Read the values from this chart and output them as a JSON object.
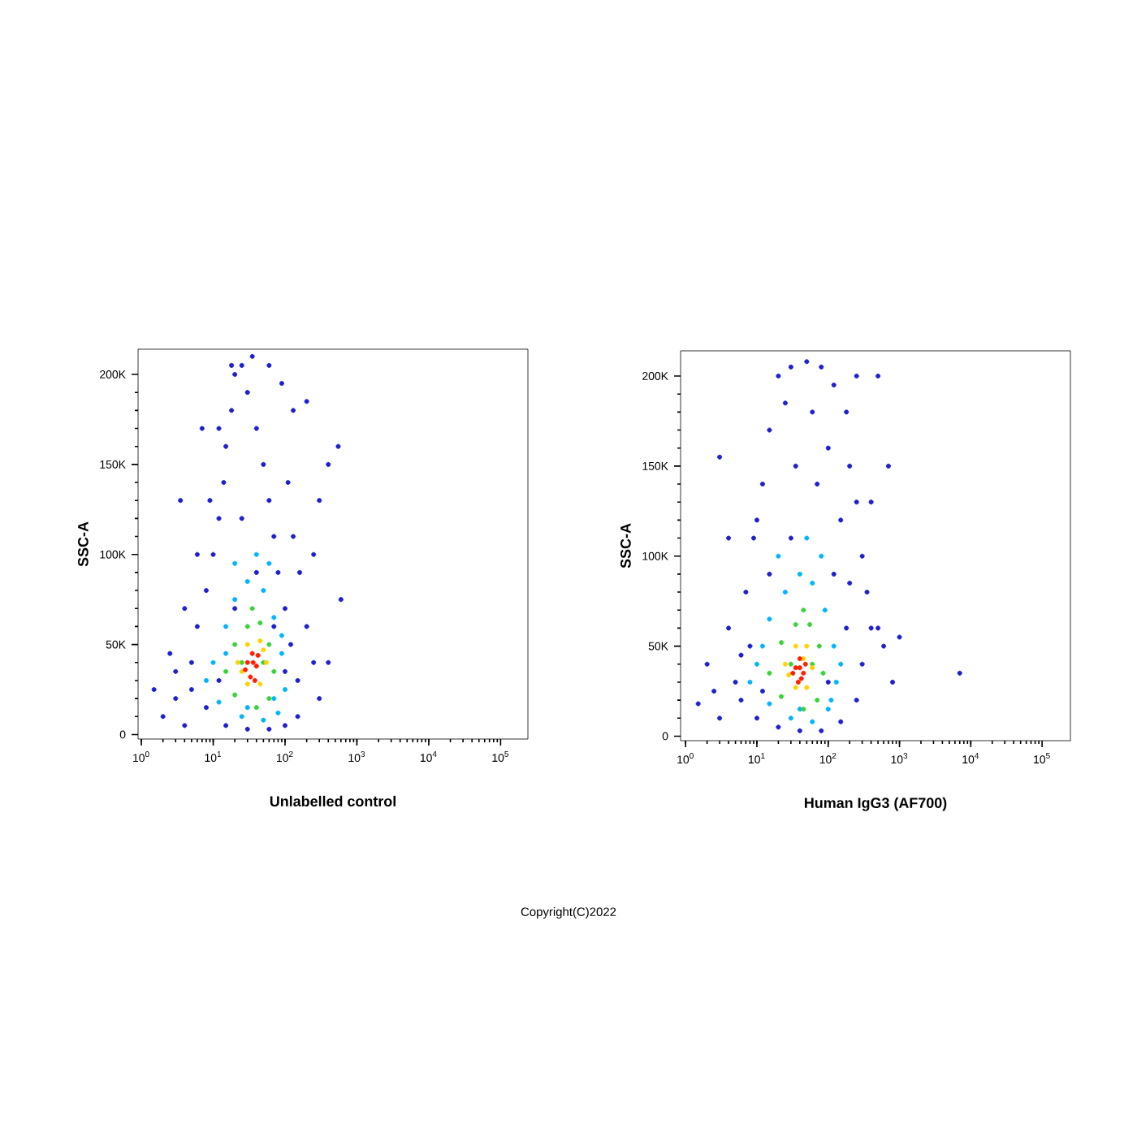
{
  "chart_data": [
    {
      "type": "scatter",
      "xlabel": "Unlabelled control",
      "ylabel": "SSC-A",
      "log": "x",
      "marker": "circle",
      "xlim": [
        0.9,
        240000
      ],
      "ylim": [
        -2500,
        214000
      ],
      "xticks": [
        {
          "value": 1,
          "label": "10$^{0}$"
        },
        {
          "value": 10,
          "label": "10$^{1}$"
        },
        {
          "value": 100,
          "label": "10$^{2}$"
        },
        {
          "value": 1000,
          "label": "10$^{3}$"
        },
        {
          "value": 10000,
          "label": "10$^{4}$"
        },
        {
          "value": 100000,
          "label": "10$^{5}$"
        }
      ],
      "yticks": [
        0,
        {
          "value": 50000,
          "label": "50K"
        },
        {
          "value": 100000,
          "label": "100K"
        },
        {
          "value": 150000,
          "label": "150K"
        },
        {
          "value": 200000,
          "label": "200K"
        }
      ],
      "annotations": [
        "Copyright(C)2022"
      ],
      "series": [
        {
          "color": "#1f1fd0",
          "x": [
            2,
            3,
            4,
            5,
            6,
            8,
            10,
            12,
            14,
            15,
            18,
            20,
            25,
            30,
            40,
            50,
            60,
            70,
            80,
            100,
            120,
            150,
            150,
            100,
            60,
            30,
            15,
            8,
            5,
            3,
            1.5,
            2.5,
            4,
            6,
            9,
            12,
            18,
            35,
            60,
            90,
            130,
            110,
            130,
            160,
            200,
            250,
            300,
            400,
            600,
            550,
            400,
            300,
            250,
            200,
            25,
            40,
            20,
            70,
            12,
            100,
            3.5,
            7
          ],
          "values": [
            10000,
            20000,
            5000,
            40000,
            60000,
            80000,
            100000,
            120000,
            140000,
            160000,
            180000,
            200000,
            205000,
            190000,
            170000,
            150000,
            130000,
            110000,
            90000,
            70000,
            50000,
            30000,
            10000,
            5000,
            3000,
            3000,
            5000,
            15000,
            25000,
            35000,
            25000,
            45000,
            70000,
            100000,
            130000,
            170000,
            205000,
            210000,
            205000,
            195000,
            180000,
            140000,
            110000,
            90000,
            60000,
            40000,
            20000,
            40000,
            75000,
            160000,
            150000,
            130000,
            100000,
            185000,
            120000,
            90000,
            70000,
            60000,
            30000,
            35000,
            130000,
            170000
          ]
        },
        {
          "color": "#00b4ff",
          "x": [
            10,
            15,
            20,
            30,
            50,
            70,
            90,
            100,
            80,
            50,
            25,
            12,
            8,
            40,
            20,
            60,
            15,
            90,
            30,
            70
          ],
          "values": [
            40000,
            60000,
            75000,
            85000,
            80000,
            65000,
            45000,
            25000,
            12000,
            8000,
            10000,
            18000,
            30000,
            100000,
            95000,
            95000,
            45000,
            55000,
            15000,
            20000
          ]
        },
        {
          "color": "#3cd23c",
          "x": [
            15,
            20,
            30,
            45,
            60,
            70,
            60,
            40,
            20,
            25,
            50,
            35
          ],
          "values": [
            35000,
            50000,
            60000,
            62000,
            50000,
            35000,
            20000,
            15000,
            22000,
            40000,
            40000,
            70000
          ]
        },
        {
          "color": "#ffd200",
          "x": [
            22,
            30,
            45,
            55,
            45,
            30,
            25,
            50
          ],
          "values": [
            40000,
            50000,
            52000,
            40000,
            28000,
            28000,
            35000,
            47000
          ]
        },
        {
          "color": "#ff1e00",
          "x": [
            30,
            35,
            40,
            33,
            42,
            28,
            38,
            36
          ],
          "values": [
            40000,
            45000,
            38000,
            32000,
            44000,
            36000,
            30000,
            40000
          ]
        }
      ]
    },
    {
      "type": "scatter",
      "xlabel": "Human IgG3 (AF700)",
      "ylabel": "SSC-A",
      "log": "x",
      "marker": "circle",
      "xlim": [
        0.85,
        250000
      ],
      "ylim": [
        -2500,
        214000
      ],
      "xticks": [
        {
          "value": 1,
          "label": "10$^{0}$"
        },
        {
          "value": 10,
          "label": "10$^{1}$"
        },
        {
          "value": 100,
          "label": "10$^{2}$"
        },
        {
          "value": 1000,
          "label": "10$^{3}$"
        },
        {
          "value": 10000,
          "label": "10$^{4}$"
        },
        {
          "value": 100000,
          "label": "10$^{5}$"
        }
      ],
      "yticks": [
        0,
        {
          "value": 50000,
          "label": "50K"
        },
        {
          "value": 100000,
          "label": "100K"
        },
        {
          "value": 150000,
          "label": "150K"
        },
        {
          "value": 200000,
          "label": "200K"
        }
      ],
      "series": [
        {
          "color": "#1f1fd0",
          "x": [
            1.5,
            2,
            3,
            4,
            5,
            7,
            9,
            12,
            15,
            20,
            30,
            50,
            80,
            120,
            180,
            200,
            250,
            300,
            350,
            400,
            300,
            250,
            150,
            80,
            40,
            20,
            10,
            6,
            4,
            3,
            10,
            25,
            60,
            100,
            150,
            200,
            500,
            600,
            800,
            1000,
            7000,
            700,
            500,
            400,
            250,
            15,
            8,
            30,
            70,
            120,
            180,
            100,
            12,
            35,
            6,
            2.5
          ],
          "values": [
            18000,
            40000,
            10000,
            60000,
            30000,
            80000,
            110000,
            140000,
            170000,
            200000,
            205000,
            208000,
            205000,
            195000,
            180000,
            150000,
            130000,
            100000,
            80000,
            60000,
            40000,
            20000,
            8000,
            3000,
            3000,
            5000,
            10000,
            20000,
            110000,
            155000,
            120000,
            185000,
            180000,
            160000,
            120000,
            85000,
            60000,
            50000,
            30000,
            55000,
            35000,
            150000,
            200000,
            130000,
            200000,
            90000,
            50000,
            110000,
            140000,
            90000,
            60000,
            30000,
            25000,
            150000,
            45000,
            25000
          ]
        },
        {
          "color": "#00b4ff",
          "x": [
            10,
            15,
            25,
            40,
            60,
            90,
            120,
            130,
            100,
            60,
            30,
            15,
            8,
            50,
            20,
            80,
            150,
            12,
            40,
            110
          ],
          "values": [
            40000,
            65000,
            80000,
            90000,
            85000,
            70000,
            50000,
            30000,
            15000,
            8000,
            10000,
            18000,
            30000,
            110000,
            100000,
            100000,
            40000,
            50000,
            15000,
            20000
          ]
        },
        {
          "color": "#3cd23c",
          "x": [
            15,
            22,
            35,
            55,
            75,
            85,
            70,
            45,
            22,
            30,
            60,
            45
          ],
          "values": [
            35000,
            52000,
            62000,
            62000,
            50000,
            35000,
            20000,
            15000,
            22000,
            40000,
            40000,
            70000
          ]
        },
        {
          "color": "#ffd200",
          "x": [
            25,
            35,
            50,
            60,
            50,
            35,
            28,
            45
          ],
          "values": [
            40000,
            50000,
            50000,
            38000,
            27000,
            27000,
            34000,
            43000
          ]
        },
        {
          "color": "#ff1e00",
          "x": [
            35,
            40,
            45,
            38,
            48,
            32,
            42,
            40
          ],
          "values": [
            38000,
            43000,
            35000,
            30000,
            40000,
            35000,
            32000,
            38000
          ]
        }
      ]
    }
  ]
}
